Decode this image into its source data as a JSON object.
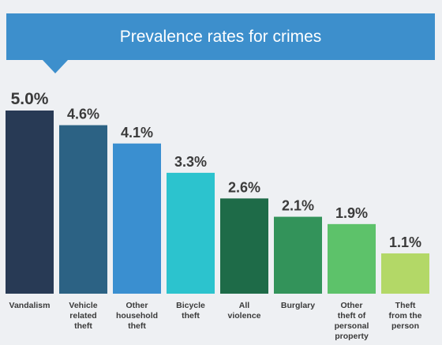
{
  "title": "Prevalence rates for crimes",
  "colors": {
    "banner": "#3d8fcc",
    "background": "#eef0f3"
  },
  "chart_data": {
    "type": "bar",
    "title": "Prevalence rates for crimes",
    "categories": [
      [
        "Vandalism"
      ],
      [
        "Vehicle",
        "related",
        "theft"
      ],
      [
        "Other",
        "household",
        "theft"
      ],
      [
        "Bicycle",
        "theft"
      ],
      [
        "All",
        "violence"
      ],
      [
        "Burglary"
      ],
      [
        "Other",
        "theft of",
        "personal",
        "property"
      ],
      [
        "Theft",
        "from the",
        "person"
      ]
    ],
    "values": [
      5.0,
      4.6,
      4.1,
      3.3,
      2.6,
      2.1,
      1.9,
      1.1
    ],
    "value_labels": [
      "5.0%",
      "4.6%",
      "4.1%",
      "3.3%",
      "2.6%",
      "2.1%",
      "1.9%",
      "1.1%"
    ],
    "bar_colors": [
      "#283a55",
      "#2c6284",
      "#3a8fd0",
      "#2cc3ce",
      "#1e6b48",
      "#33935a",
      "#5dc26a",
      "#b3d867"
    ],
    "xlabel": "",
    "ylabel": "",
    "ylim": [
      0,
      5.0
    ],
    "grid": false,
    "legend": "none"
  }
}
